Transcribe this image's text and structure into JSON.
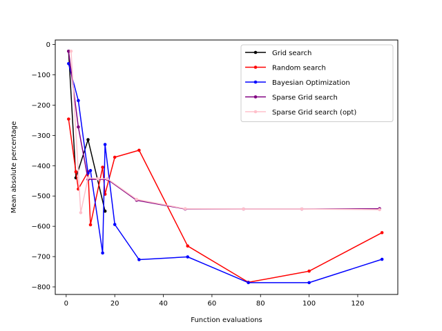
{
  "chart_data": {
    "type": "line",
    "title": "",
    "xlabel": "Function evaluations",
    "ylabel": "Mean absolute percentage",
    "xlim": [
      -4.5,
      136.5
    ],
    "ylim": [
      -825,
      15
    ],
    "xticks": [
      0,
      20,
      40,
      60,
      80,
      100,
      120
    ],
    "yticks": [
      0,
      -100,
      -200,
      -300,
      -400,
      -500,
      -600,
      -700,
      -800
    ],
    "grid": false,
    "legend_position": "top-right",
    "series": [
      {
        "name": "Grid search",
        "color": "#000000",
        "x": [
          1,
          4,
          9,
          16
        ],
        "y": [
          -22,
          -440,
          -314,
          -550
        ]
      },
      {
        "name": "Random search",
        "color": "#ff0000",
        "x": [
          1,
          4,
          5,
          9,
          10,
          15,
          16,
          20,
          30,
          50,
          75,
          100,
          130
        ],
        "y": [
          -246,
          -420,
          -477,
          -420,
          -595,
          -405,
          -494,
          -372,
          -349,
          -665,
          -785,
          -748,
          -621
        ]
      },
      {
        "name": "Bayesian Optimization",
        "color": "#0000ff",
        "x": [
          1,
          5,
          9,
          10,
          15,
          16,
          20,
          30,
          50,
          75,
          100,
          130
        ],
        "y": [
          -63,
          -185,
          -425,
          -416,
          -688,
          -330,
          -594,
          -710,
          -701,
          -786,
          -786,
          -709
        ]
      },
      {
        "name": "Sparse Grid search",
        "color": "#800080",
        "x": [
          1,
          5,
          9,
          17,
          29,
          49,
          73,
          97,
          129
        ],
        "y": [
          -22,
          -272,
          -445,
          -445,
          -514,
          -543,
          -543,
          -543,
          -542
        ]
      },
      {
        "name": "Sparse Grid search (opt)",
        "color": "#ffc0cb",
        "x": [
          2,
          6,
          9,
          13,
          17,
          29,
          49,
          73,
          97,
          129
        ],
        "y": [
          -22,
          -555,
          -440,
          -443,
          -443,
          -511,
          -542,
          -543,
          -543,
          -545
        ]
      }
    ]
  }
}
